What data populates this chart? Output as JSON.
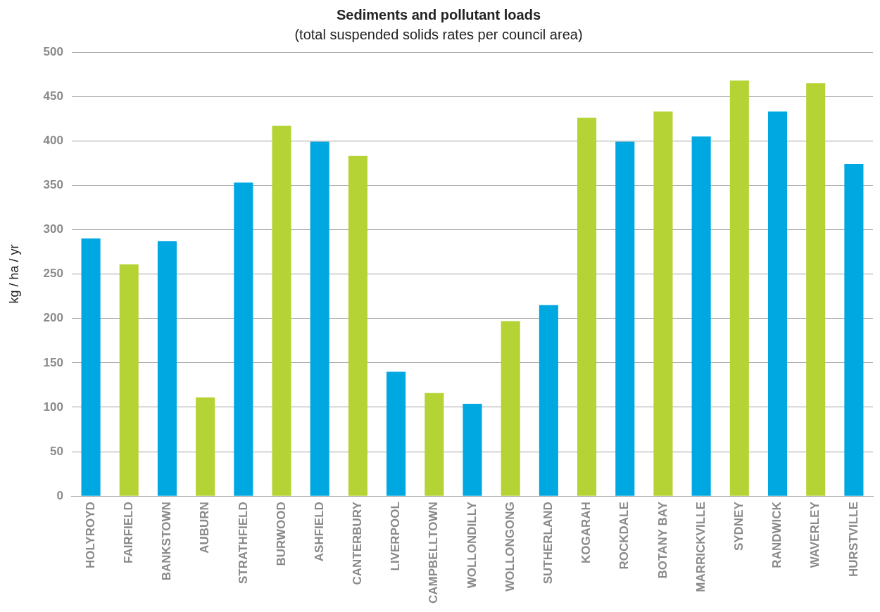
{
  "chart_data": {
    "type": "bar",
    "title": "Sediments and pollutant loads",
    "subtitle": "(total suspended solids rates per council area)",
    "ylabel": "kg / ha / yr",
    "categories": [
      "HOLYROYD",
      "FAIRFIELD",
      "BANKSTOWN",
      "AUBURN",
      "STRATHFIELD",
      "BURWOOD",
      "ASHFIELD",
      "CANTERBURY",
      "LIVERPOOL",
      "CAMPBELLTOWN",
      "WOLLONDILLY",
      "WOLLONGONG",
      "SUTHERLAND",
      "KOGARAH",
      "ROCKDALE",
      "BOTANY BAY",
      "MARRICKVILLE",
      "SYDNEY",
      "RANDWICK",
      "WAVERLEY",
      "HURSTVILLE"
    ],
    "values": [
      290,
      261,
      287,
      111,
      353,
      417,
      399,
      383,
      140,
      116,
      104,
      197,
      215,
      426,
      399,
      433,
      405,
      468,
      433,
      465,
      374
    ],
    "colors": [
      "#00a8e1",
      "#b5d334",
      "#00a8e1",
      "#b5d334",
      "#00a8e1",
      "#b5d334",
      "#00a8e1",
      "#b5d334",
      "#00a8e1",
      "#b5d334",
      "#00a8e1",
      "#b5d334",
      "#00a8e1",
      "#b5d334",
      "#00a8e1",
      "#b5d334",
      "#00a8e1",
      "#b5d334",
      "#00a8e1",
      "#b5d334",
      "#00a8e1"
    ],
    "ylim": [
      0,
      500
    ],
    "yticks": [
      0,
      50,
      100,
      150,
      200,
      250,
      300,
      350,
      400,
      450,
      500
    ],
    "grid": "y",
    "legend": false
  }
}
